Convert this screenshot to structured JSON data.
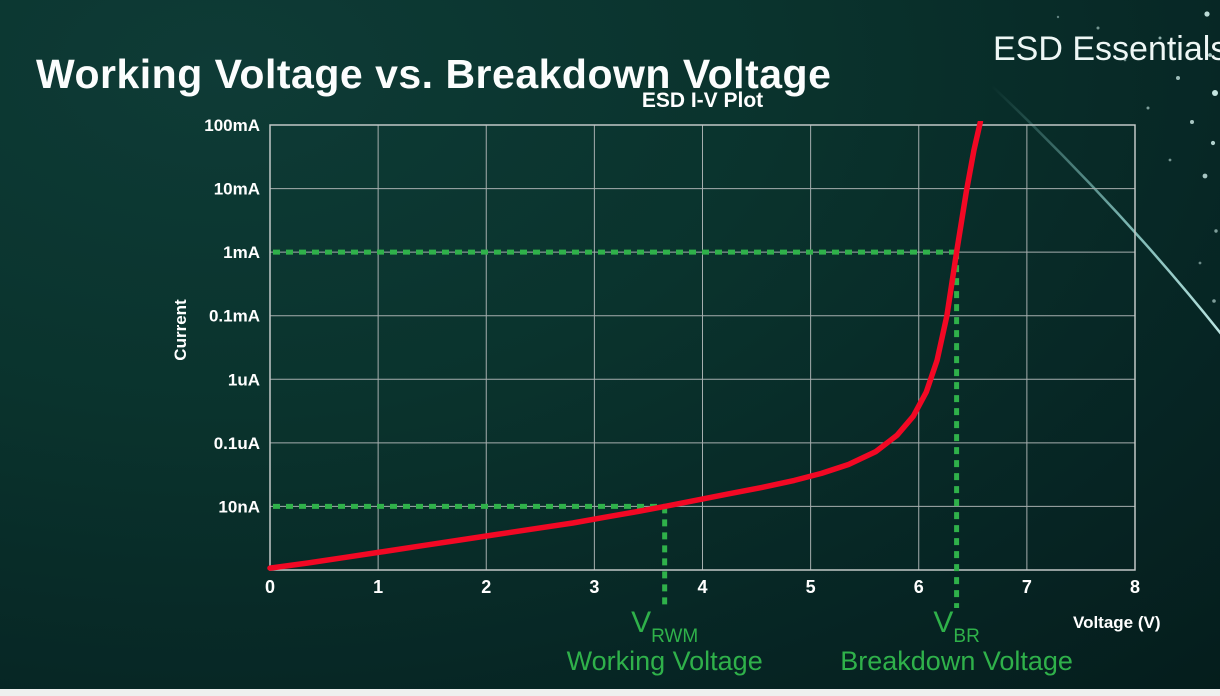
{
  "page": {
    "title": "Working Voltage vs. Breakdown Voltage",
    "brand": "ESD Essentials"
  },
  "chart_data": {
    "type": "line",
    "title": "ESD I-V Plot",
    "xlabel": "Voltage (V)",
    "ylabel": "Current",
    "xlim": [
      0,
      8
    ],
    "x_ticks": [
      0,
      1,
      2,
      3,
      4,
      5,
      6,
      7,
      8
    ],
    "y_tick_labels": [
      "100mA",
      "10mA",
      "1mA",
      "0.1mA",
      "1uA",
      "0.1uA",
      "10nA"
    ],
    "y_scale": "log-decades-top-to-bottom",
    "grid": true,
    "legend": "none",
    "colors": {
      "curve": "#f20824",
      "marker_green": "#2fb14a",
      "grid": "#a6aeae"
    },
    "series": [
      {
        "name": "ESD I-V curve",
        "color": "#f20824",
        "points_v_row": [
          [
            0,
            6.97
          ],
          [
            0.35,
            6.89
          ],
          [
            0.7,
            6.8
          ],
          [
            1.05,
            6.71
          ],
          [
            1.4,
            6.62
          ],
          [
            1.75,
            6.53
          ],
          [
            2.1,
            6.44
          ],
          [
            2.45,
            6.35
          ],
          [
            2.8,
            6.26
          ],
          [
            3.1,
            6.17
          ],
          [
            3.4,
            6.08
          ],
          [
            3.65,
            6.0
          ],
          [
            3.95,
            5.9
          ],
          [
            4.25,
            5.8
          ],
          [
            4.55,
            5.7
          ],
          [
            4.85,
            5.59
          ],
          [
            5.1,
            5.48
          ],
          [
            5.35,
            5.34
          ],
          [
            5.6,
            5.14
          ],
          [
            5.8,
            4.88
          ],
          [
            5.95,
            4.58
          ],
          [
            6.07,
            4.2
          ],
          [
            6.17,
            3.7
          ],
          [
            6.26,
            3.0
          ],
          [
            6.35,
            2.0
          ],
          [
            6.44,
            1.05
          ],
          [
            6.51,
            0.4
          ],
          [
            6.57,
            -0.05
          ]
        ]
      }
    ],
    "markers": [
      {
        "symbol_base": "V",
        "symbol_sub": "RWM",
        "caption": "Working Voltage",
        "voltage": 3.65,
        "current_label": "10nA",
        "row": 6
      },
      {
        "symbol_base": "V",
        "symbol_sub": "BR",
        "caption": "Breakdown Voltage",
        "voltage": 6.35,
        "current_label": "1mA",
        "row": 2
      }
    ]
  }
}
